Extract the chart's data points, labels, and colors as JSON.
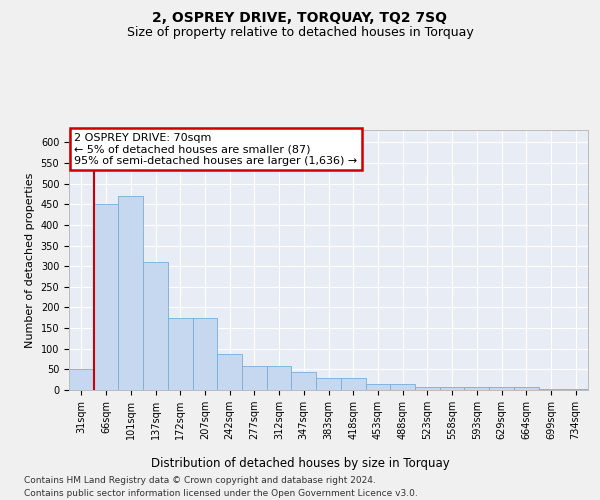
{
  "title": "2, OSPREY DRIVE, TORQUAY, TQ2 7SQ",
  "subtitle": "Size of property relative to detached houses in Torquay",
  "xlabel": "Distribution of detached houses by size in Torquay",
  "ylabel": "Number of detached properties",
  "categories": [
    "31sqm",
    "66sqm",
    "101sqm",
    "137sqm",
    "172sqm",
    "207sqm",
    "242sqm",
    "277sqm",
    "312sqm",
    "347sqm",
    "383sqm",
    "418sqm",
    "453sqm",
    "488sqm",
    "523sqm",
    "558sqm",
    "593sqm",
    "629sqm",
    "664sqm",
    "699sqm",
    "734sqm"
  ],
  "values": [
    52,
    451,
    470,
    311,
    174,
    174,
    88,
    57,
    57,
    43,
    30,
    30,
    14,
    14,
    8,
    8,
    8,
    8,
    8,
    3,
    3
  ],
  "bar_color": "#c5d8ef",
  "bar_edge_color": "#7aadd4",
  "background_color": "#e8ecf5",
  "fig_background_color": "#f0f0f0",
  "annotation_box_text": "2 OSPREY DRIVE: 70sqm\n← 5% of detached houses are smaller (87)\n95% of semi-detached houses are larger (1,636) →",
  "annotation_box_color": "#ffffff",
  "annotation_box_edge_color": "#cc0000",
  "vline_color": "#cc0000",
  "ylim": [
    0,
    630
  ],
  "yticks": [
    0,
    50,
    100,
    150,
    200,
    250,
    300,
    350,
    400,
    450,
    500,
    550,
    600
  ],
  "footer_line1": "Contains HM Land Registry data © Crown copyright and database right 2024.",
  "footer_line2": "Contains public sector information licensed under the Open Government Licence v3.0.",
  "title_fontsize": 10,
  "subtitle_fontsize": 9,
  "xlabel_fontsize": 8.5,
  "ylabel_fontsize": 8,
  "tick_fontsize": 7,
  "annotation_fontsize": 8,
  "footer_fontsize": 6.5
}
